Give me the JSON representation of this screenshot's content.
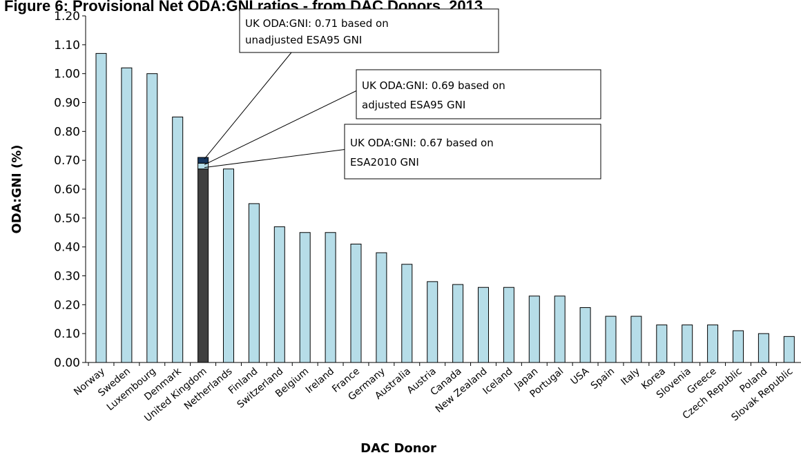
{
  "chart_data": {
    "type": "bar",
    "title": "Figure 6: Provisional Net ODA:GNI ratios - from DAC Donors, 2013",
    "xlabel": "DAC Donor",
    "ylabel": "ODA:GNI (%)",
    "ylim": [
      0,
      1.2
    ],
    "ytick_step": 0.1,
    "yticks": [
      "0.00",
      "0.10",
      "0.20",
      "0.30",
      "0.40",
      "0.50",
      "0.60",
      "0.70",
      "0.80",
      "0.90",
      "1.00",
      "1.10",
      "1.20"
    ],
    "grid": false,
    "legend": "none",
    "categories": [
      "Norway",
      "Sweden",
      "Luxembourg",
      "Denmark",
      "United Kingdom",
      "Netherlands",
      "Finland",
      "Switzerland",
      "Belgium",
      "Ireland",
      "France",
      "Germany",
      "Australia",
      "Austria",
      "Canada",
      "New Zealand",
      "Iceland",
      "Japan",
      "Portugal",
      "USA",
      "Spain",
      "Italy",
      "Korea",
      "Slovenia",
      "Greece",
      "Czech Republic",
      "Poland",
      "Slovak Republic"
    ],
    "values": [
      1.07,
      1.02,
      1.0,
      0.85,
      0.67,
      0.67,
      0.55,
      0.47,
      0.45,
      0.45,
      0.41,
      0.38,
      0.34,
      0.28,
      0.27,
      0.26,
      0.26,
      0.23,
      0.23,
      0.19,
      0.16,
      0.16,
      0.13,
      0.13,
      0.13,
      0.11,
      0.1,
      0.09
    ],
    "uk_stack": [
      {
        "from": 0.0,
        "to": 0.67,
        "color": "#404040"
      },
      {
        "from": 0.67,
        "to": 0.69,
        "color": "#b6dde8"
      },
      {
        "from": 0.69,
        "to": 0.71,
        "color": "#17375e"
      }
    ],
    "annotations": [
      {
        "line1": "UK ODA:GNI: 0.71 based on",
        "line2": "unadjusted ESA95 GNI",
        "points_to": 0.705
      },
      {
        "line1": "UK ODA:GNI: 0.69 based on",
        "line2": "adjusted ESA95 GNI",
        "points_to": 0.685
      },
      {
        "line1": "UK ODA:GNI: 0.67 based on",
        "line2": "ESA2010  GNI",
        "points_to": 0.675
      }
    ],
    "colors": {
      "bar": "#b6dde8",
      "uk_bar": "#404040",
      "outline": "#000000"
    }
  }
}
